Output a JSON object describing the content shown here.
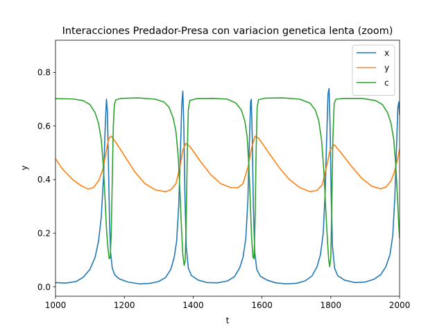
{
  "chart_data": {
    "type": "line",
    "title": "Interacciones Predador-Presa con variacion genetica lenta (zoom)",
    "xlabel": "t",
    "ylabel": "y",
    "xlim": [
      1000,
      2000
    ],
    "ylim": [
      -0.035,
      0.92
    ],
    "xticks": [
      1000,
      1200,
      1400,
      1600,
      1800,
      2000
    ],
    "xtick_labels": [
      "1000",
      "1200",
      "1400",
      "1600",
      "1800",
      "2000"
    ],
    "yticks": [
      0.0,
      0.2,
      0.4,
      0.6,
      0.8
    ],
    "ytick_labels": [
      "0.0",
      "0.2",
      "0.4",
      "0.6",
      "0.8"
    ],
    "grid": false,
    "legend_position": "top-right",
    "series": [
      {
        "name": "x",
        "color": "#1f77b4",
        "points": [
          [
            1000,
            0.016
          ],
          [
            1030,
            0.014
          ],
          [
            1060,
            0.02
          ],
          [
            1080,
            0.035
          ],
          [
            1100,
            0.065
          ],
          [
            1115,
            0.11
          ],
          [
            1125,
            0.17
          ],
          [
            1133,
            0.26
          ],
          [
            1140,
            0.42
          ],
          [
            1144,
            0.58
          ],
          [
            1148,
            0.7
          ],
          [
            1151,
            0.65
          ],
          [
            1154,
            0.45
          ],
          [
            1157,
            0.25
          ],
          [
            1160,
            0.13
          ],
          [
            1165,
            0.07
          ],
          [
            1172,
            0.045
          ],
          [
            1185,
            0.03
          ],
          [
            1210,
            0.018
          ],
          [
            1245,
            0.011
          ],
          [
            1275,
            0.013
          ],
          [
            1300,
            0.02
          ],
          [
            1320,
            0.035
          ],
          [
            1335,
            0.065
          ],
          [
            1345,
            0.11
          ],
          [
            1352,
            0.17
          ],
          [
            1358,
            0.3
          ],
          [
            1363,
            0.5
          ],
          [
            1367,
            0.68
          ],
          [
            1370,
            0.73
          ],
          [
            1373,
            0.6
          ],
          [
            1376,
            0.35
          ],
          [
            1380,
            0.15
          ],
          [
            1386,
            0.07
          ],
          [
            1395,
            0.042
          ],
          [
            1415,
            0.025
          ],
          [
            1440,
            0.016
          ],
          [
            1470,
            0.015
          ],
          [
            1500,
            0.022
          ],
          [
            1520,
            0.038
          ],
          [
            1535,
            0.07
          ],
          [
            1545,
            0.11
          ],
          [
            1553,
            0.18
          ],
          [
            1559,
            0.32
          ],
          [
            1563,
            0.52
          ],
          [
            1567,
            0.69
          ],
          [
            1569,
            0.7
          ],
          [
            1572,
            0.55
          ],
          [
            1575,
            0.3
          ],
          [
            1579,
            0.13
          ],
          [
            1585,
            0.065
          ],
          [
            1595,
            0.04
          ],
          [
            1615,
            0.025
          ],
          [
            1640,
            0.015
          ],
          [
            1670,
            0.011
          ],
          [
            1700,
            0.013
          ],
          [
            1725,
            0.022
          ],
          [
            1745,
            0.04
          ],
          [
            1760,
            0.075
          ],
          [
            1770,
            0.12
          ],
          [
            1778,
            0.2
          ],
          [
            1784,
            0.36
          ],
          [
            1788,
            0.55
          ],
          [
            1792,
            0.72
          ],
          [
            1795,
            0.74
          ],
          [
            1798,
            0.6
          ],
          [
            1801,
            0.35
          ],
          [
            1805,
            0.15
          ],
          [
            1811,
            0.07
          ],
          [
            1820,
            0.042
          ],
          [
            1840,
            0.025
          ],
          [
            1870,
            0.016
          ],
          [
            1900,
            0.018
          ],
          [
            1925,
            0.028
          ],
          [
            1945,
            0.045
          ],
          [
            1960,
            0.075
          ],
          [
            1972,
            0.12
          ],
          [
            1980,
            0.19
          ],
          [
            1986,
            0.33
          ],
          [
            1991,
            0.52
          ],
          [
            1995,
            0.67
          ],
          [
            1998,
            0.69
          ],
          [
            2000,
            0.64
          ]
        ]
      },
      {
        "name": "y",
        "color": "#ff7f0e",
        "points": [
          [
            1000,
            0.478
          ],
          [
            1020,
            0.44
          ],
          [
            1050,
            0.4
          ],
          [
            1075,
            0.377
          ],
          [
            1095,
            0.365
          ],
          [
            1110,
            0.37
          ],
          [
            1125,
            0.395
          ],
          [
            1138,
            0.44
          ],
          [
            1148,
            0.51
          ],
          [
            1155,
            0.555
          ],
          [
            1162,
            0.562
          ],
          [
            1175,
            0.54
          ],
          [
            1200,
            0.49
          ],
          [
            1230,
            0.43
          ],
          [
            1260,
            0.385
          ],
          [
            1290,
            0.362
          ],
          [
            1320,
            0.355
          ],
          [
            1335,
            0.362
          ],
          [
            1350,
            0.385
          ],
          [
            1362,
            0.45
          ],
          [
            1370,
            0.51
          ],
          [
            1378,
            0.535
          ],
          [
            1390,
            0.525
          ],
          [
            1420,
            0.47
          ],
          [
            1450,
            0.42
          ],
          [
            1480,
            0.385
          ],
          [
            1510,
            0.37
          ],
          [
            1530,
            0.37
          ],
          [
            1545,
            0.385
          ],
          [
            1560,
            0.45
          ],
          [
            1570,
            0.52
          ],
          [
            1580,
            0.562
          ],
          [
            1590,
            0.555
          ],
          [
            1620,
            0.5
          ],
          [
            1650,
            0.445
          ],
          [
            1680,
            0.4
          ],
          [
            1710,
            0.37
          ],
          [
            1740,
            0.355
          ],
          [
            1760,
            0.36
          ],
          [
            1775,
            0.38
          ],
          [
            1788,
            0.45
          ],
          [
            1798,
            0.51
          ],
          [
            1810,
            0.53
          ],
          [
            1830,
            0.5
          ],
          [
            1860,
            0.45
          ],
          [
            1890,
            0.405
          ],
          [
            1920,
            0.375
          ],
          [
            1945,
            0.366
          ],
          [
            1960,
            0.372
          ],
          [
            1975,
            0.395
          ],
          [
            1985,
            0.43
          ],
          [
            1995,
            0.48
          ],
          [
            2000,
            0.515
          ]
        ]
      },
      {
        "name": "c",
        "color": "#2ca02c",
        "points": [
          [
            1000,
            0.702
          ],
          [
            1050,
            0.701
          ],
          [
            1080,
            0.695
          ],
          [
            1100,
            0.68
          ],
          [
            1115,
            0.65
          ],
          [
            1125,
            0.61
          ],
          [
            1133,
            0.55
          ],
          [
            1139,
            0.45
          ],
          [
            1144,
            0.33
          ],
          [
            1148,
            0.22
          ],
          [
            1152,
            0.15
          ],
          [
            1156,
            0.105
          ],
          [
            1159,
            0.11
          ],
          [
            1162,
            0.2
          ],
          [
            1165,
            0.4
          ],
          [
            1168,
            0.6
          ],
          [
            1171,
            0.68
          ],
          [
            1175,
            0.697
          ],
          [
            1190,
            0.703
          ],
          [
            1240,
            0.705
          ],
          [
            1290,
            0.7
          ],
          [
            1315,
            0.69
          ],
          [
            1330,
            0.67
          ],
          [
            1342,
            0.63
          ],
          [
            1350,
            0.58
          ],
          [
            1357,
            0.48
          ],
          [
            1362,
            0.35
          ],
          [
            1366,
            0.22
          ],
          [
            1370,
            0.12
          ],
          [
            1374,
            0.08
          ],
          [
            1377,
            0.1
          ],
          [
            1380,
            0.25
          ],
          [
            1383,
            0.5
          ],
          [
            1386,
            0.66
          ],
          [
            1390,
            0.695
          ],
          [
            1410,
            0.702
          ],
          [
            1460,
            0.703
          ],
          [
            1500,
            0.7
          ],
          [
            1525,
            0.685
          ],
          [
            1540,
            0.66
          ],
          [
            1550,
            0.62
          ],
          [
            1557,
            0.56
          ],
          [
            1562,
            0.45
          ],
          [
            1566,
            0.32
          ],
          [
            1570,
            0.18
          ],
          [
            1574,
            0.11
          ],
          [
            1577,
            0.105
          ],
          [
            1580,
            0.25
          ],
          [
            1583,
            0.5
          ],
          [
            1586,
            0.67
          ],
          [
            1590,
            0.698
          ],
          [
            1610,
            0.704
          ],
          [
            1660,
            0.705
          ],
          [
            1710,
            0.7
          ],
          [
            1740,
            0.685
          ],
          [
            1755,
            0.66
          ],
          [
            1765,
            0.62
          ],
          [
            1773,
            0.55
          ],
          [
            1780,
            0.43
          ],
          [
            1785,
            0.3
          ],
          [
            1790,
            0.18
          ],
          [
            1794,
            0.1
          ],
          [
            1797,
            0.075
          ],
          [
            1800,
            0.11
          ],
          [
            1803,
            0.3
          ],
          [
            1806,
            0.55
          ],
          [
            1810,
            0.685
          ],
          [
            1815,
            0.7
          ],
          [
            1840,
            0.703
          ],
          [
            1890,
            0.703
          ],
          [
            1930,
            0.695
          ],
          [
            1950,
            0.68
          ],
          [
            1965,
            0.65
          ],
          [
            1975,
            0.61
          ],
          [
            1983,
            0.55
          ],
          [
            1989,
            0.45
          ],
          [
            1994,
            0.33
          ],
          [
            1998,
            0.22
          ],
          [
            2000,
            0.18
          ]
        ]
      }
    ]
  }
}
